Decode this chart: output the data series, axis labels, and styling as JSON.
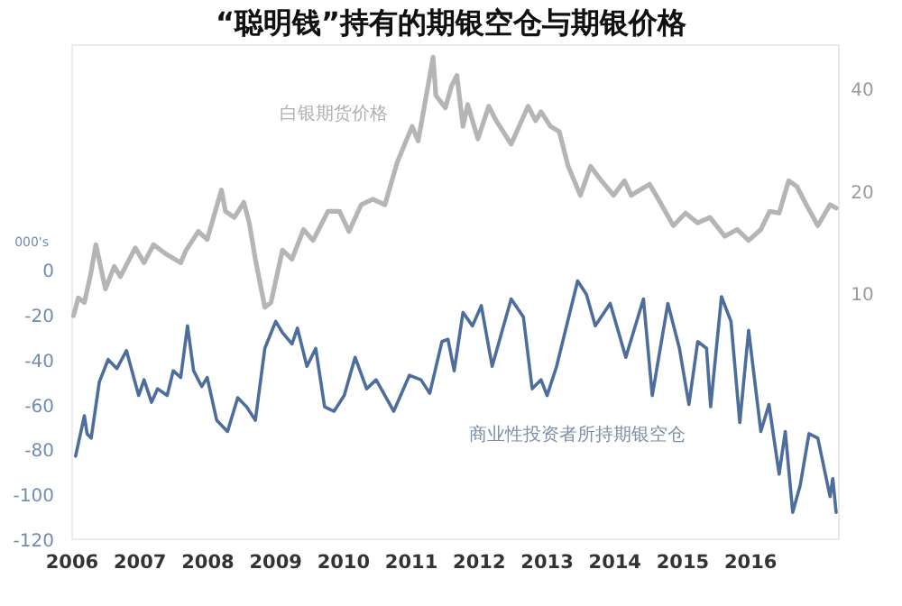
{
  "chart_data": {
    "type": "line",
    "title": "“聪明钱”持有的期银空仓与期银价格",
    "ylabel": "000's",
    "xlim": [
      2006,
      2017.3
    ],
    "xticks": [
      2006,
      2007,
      2008,
      2009,
      2010,
      2011,
      2012,
      2013,
      2014,
      2015,
      2016
    ],
    "ylim": [
      -120,
      100
    ],
    "yticks": [
      -120,
      -100,
      -80,
      -60,
      -40,
      -20,
      0
    ],
    "y2lim": [
      1.9,
      53.5
    ],
    "y2ticks": [
      10,
      20,
      40
    ],
    "log": "y2",
    "legend": false,
    "grid": false,
    "marker": "none",
    "line_style": "solid",
    "series": [
      {
        "name": "白银期货价格",
        "color": "#b5b5b5",
        "axis": "y2",
        "x": [
          2006.02,
          2006.09,
          2006.18,
          2006.27,
          2006.35,
          2006.49,
          2006.62,
          2006.71,
          2006.93,
          2007.06,
          2007.2,
          2007.37,
          2007.6,
          2007.68,
          2007.86,
          2007.99,
          2008.2,
          2008.26,
          2008.39,
          2008.53,
          2008.61,
          2008.7,
          2008.84,
          2008.93,
          2009.1,
          2009.24,
          2009.41,
          2009.55,
          2009.77,
          2009.94,
          2010.08,
          2010.26,
          2010.43,
          2010.61,
          2010.79,
          2011.01,
          2011.1,
          2011.32,
          2011.36,
          2011.5,
          2011.59,
          2011.67,
          2011.76,
          2011.83,
          2011.98,
          2012.14,
          2012.25,
          2012.47,
          2012.72,
          2012.83,
          2012.91,
          2013.05,
          2013.18,
          2013.31,
          2013.49,
          2013.64,
          2013.8,
          2013.98,
          2014.14,
          2014.24,
          2014.51,
          2014.64,
          2014.86,
          2015.04,
          2015.22,
          2015.4,
          2015.62,
          2015.8,
          2015.97,
          2016.15,
          2016.28,
          2016.42,
          2016.56,
          2016.68,
          2016.82,
          2016.99,
          2017.17,
          2017.26
        ],
        "values": [
          8.6,
          9.7,
          9.4,
          11.3,
          13.9,
          10.3,
          12.0,
          11.2,
          13.6,
          12.3,
          13.9,
          13.1,
          12.3,
          13.4,
          15.2,
          14.4,
          20.1,
          17.4,
          16.7,
          18.5,
          16.1,
          12.6,
          9.1,
          9.4,
          13.4,
          12.6,
          15.4,
          14.3,
          17.4,
          17.4,
          15.2,
          18.2,
          18.9,
          18.2,
          24.2,
          30.9,
          28.0,
          49.3,
          38.1,
          35.0,
          40.5,
          43.6,
          30.9,
          35.8,
          28.4,
          35.4,
          32.1,
          27.4,
          35.4,
          32.1,
          34.1,
          30.9,
          29.8,
          23.6,
          19.4,
          23.6,
          21.4,
          19.4,
          21.4,
          19.4,
          20.9,
          18.9,
          15.8,
          17.2,
          16.1,
          16.7,
          14.7,
          15.4,
          14.3,
          15.4,
          17.4,
          17.2,
          21.4,
          20.6,
          18.2,
          15.8,
          18.2,
          17.8
        ]
      },
      {
        "name": "商业性投资者所持期银空仓",
        "color": "#4d6d9c",
        "x": [
          2006.05,
          2006.13,
          2006.18,
          2006.22,
          2006.28,
          2006.4,
          2006.53,
          2006.66,
          2006.8,
          2006.98,
          2007.06,
          2007.17,
          2007.26,
          2007.4,
          2007.49,
          2007.6,
          2007.7,
          2007.79,
          2007.91,
          2007.99,
          2008.13,
          2008.29,
          2008.44,
          2008.57,
          2008.7,
          2008.84,
          2009.0,
          2009.1,
          2009.24,
          2009.32,
          2009.46,
          2009.59,
          2009.72,
          2009.86,
          2010.01,
          2010.17,
          2010.34,
          2010.48,
          2010.61,
          2010.74,
          2010.97,
          2011.14,
          2011.27,
          2011.45,
          2011.54,
          2011.63,
          2011.76,
          2011.9,
          2012.03,
          2012.19,
          2012.47,
          2012.65,
          2012.78,
          2012.91,
          2013.0,
          2013.14,
          2013.45,
          2013.58,
          2013.71,
          2013.93,
          2014.16,
          2014.42,
          2014.55,
          2014.78,
          2014.95,
          2015.09,
          2015.22,
          2015.35,
          2015.41,
          2015.57,
          2015.71,
          2015.84,
          2015.97,
          2016.15,
          2016.27,
          2016.42,
          2016.51,
          2016.62,
          2016.73,
          2016.86,
          2016.99,
          2017.17,
          2017.21,
          2017.26
        ],
        "values": [
          -83,
          -72,
          -65,
          -73,
          -75,
          -50,
          -40,
          -44,
          -36,
          -56,
          -49,
          -59,
          -53,
          -56,
          -45,
          -48,
          -25,
          -45,
          -52,
          -48,
          -67,
          -72,
          -57,
          -61,
          -67,
          -35,
          -23,
          -28,
          -33,
          -26,
          -43,
          -35,
          -61,
          -63,
          -56,
          -39,
          -53,
          -49,
          -56,
          -63,
          -47,
          -49,
          -55,
          -32,
          -31,
          -45,
          -19,
          -25,
          -16,
          -43,
          -13,
          -21,
          -53,
          -49,
          -56,
          -43,
          -5,
          -11,
          -25,
          -15,
          -39,
          -13,
          -56,
          -15,
          -35,
          -60,
          -32,
          -35,
          -61,
          -12,
          -23,
          -68,
          -27,
          -72,
          -60,
          -91,
          -72,
          -108,
          -96,
          -73,
          -75,
          -101,
          -93,
          -108
        ]
      }
    ]
  }
}
